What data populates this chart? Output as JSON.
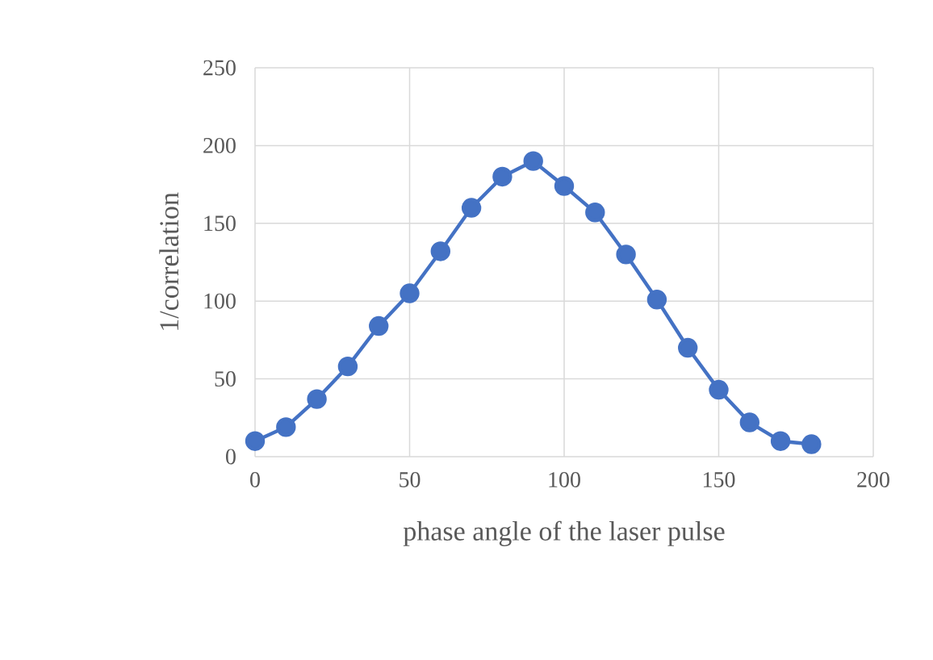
{
  "chart_data": {
    "type": "line",
    "xlabel": "phase angle of the laser pulse",
    "ylabel": "1/correlation",
    "x": [
      0,
      10,
      20,
      30,
      40,
      50,
      60,
      70,
      80,
      90,
      100,
      110,
      120,
      130,
      140,
      150,
      160,
      170,
      180
    ],
    "series": [
      {
        "color": "#4472c4",
        "values": [
          10,
          19,
          37,
          58,
          84,
          105,
          132,
          160,
          180,
          190,
          174,
          157,
          130,
          101,
          70,
          43,
          22,
          10,
          8
        ]
      }
    ],
    "xlim": [
      0,
      200
    ],
    "xticks": [
      0,
      50,
      100,
      150,
      200
    ],
    "ylim": [
      0,
      250
    ],
    "yticks": [
      0,
      50,
      100,
      150,
      200,
      250
    ],
    "grid": true,
    "marker": "circle",
    "line_style": "solid"
  }
}
